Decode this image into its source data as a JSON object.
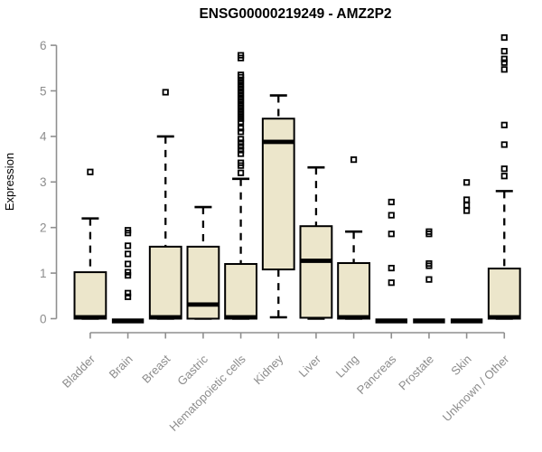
{
  "colors": {
    "background": "#ffffff",
    "box_fill": "#ece6cb",
    "box_border": "#000000",
    "median": "#000000",
    "whisker": "#000000",
    "outlier": "#000000",
    "axis": "#8f8f8f",
    "tick_label": "#8c8c8c",
    "title": "#000000"
  },
  "chart_data": {
    "type": "boxplot",
    "title": "ENSG00000219249 - AMZ2P2",
    "xlabel": "",
    "ylabel": "Expression",
    "ylim": [
      0,
      6.2
    ],
    "yticks": [
      0,
      1,
      2,
      3,
      4,
      5,
      6
    ],
    "grid": false,
    "legend": "none",
    "x_tick_rotation": 45,
    "outlier_marker": "open-square",
    "whisker_style": "dashed",
    "categories": [
      "Bladder",
      "Brain",
      "Breast",
      "Gastric",
      "Hematopoietic cells",
      "Kidney",
      "Liver",
      "Lung",
      "Pancreas",
      "Prostate",
      "Skin",
      "Unknown / Other"
    ],
    "boxes": [
      {
        "label": "Bladder",
        "whisker_low": 0,
        "q1": 0,
        "median": 0.03,
        "q3": 1.02,
        "whisker_high": 2.2,
        "outliers": [
          3.22
        ]
      },
      {
        "label": "Brain",
        "whisker_low": 0,
        "q1": 0,
        "median": 0,
        "q3": 0,
        "whisker_high": 0,
        "outliers": [
          0.48,
          0.56,
          0.95,
          1.02,
          1.2,
          1.42,
          1.6,
          1.88,
          1.94
        ]
      },
      {
        "label": "Breast",
        "whisker_low": 0,
        "q1": 0,
        "median": 0.03,
        "q3": 1.58,
        "whisker_high": 4.0,
        "outliers": [
          4.97
        ]
      },
      {
        "label": "Gastric",
        "whisker_low": 0,
        "q1": 0,
        "median": 0.31,
        "q3": 1.58,
        "whisker_high": 2.45,
        "outliers": []
      },
      {
        "label": "Hematopoietic cells",
        "whisker_low": 0,
        "q1": 0,
        "median": 0.03,
        "q3": 1.2,
        "whisker_high": 3.07,
        "outliers": [
          3.2,
          3.36,
          3.42,
          3.62,
          3.7,
          3.78,
          3.86,
          3.94,
          4.1,
          4.18,
          4.32,
          4.39,
          4.46,
          4.53,
          4.6,
          4.67,
          4.74,
          4.81,
          4.88,
          4.95,
          5.02,
          5.09,
          5.16,
          5.23,
          5.3,
          5.35,
          5.72,
          5.78
        ]
      },
      {
        "label": "Kidney",
        "whisker_low": 0.03,
        "q1": 1.08,
        "median": 3.88,
        "q3": 4.39,
        "whisker_high": 4.9,
        "outliers": []
      },
      {
        "label": "Liver",
        "whisker_low": 0,
        "q1": 0.02,
        "median": 1.27,
        "q3": 2.03,
        "whisker_high": 3.32,
        "outliers": []
      },
      {
        "label": "Lung",
        "whisker_low": 0,
        "q1": 0,
        "median": 0.03,
        "q3": 1.22,
        "whisker_high": 1.91,
        "outliers": [
          3.49
        ]
      },
      {
        "label": "Pancreas",
        "whisker_low": 0,
        "q1": 0,
        "median": 0,
        "q3": 0,
        "whisker_high": 0,
        "outliers": [
          0.79,
          1.11,
          1.86,
          2.27,
          2.56
        ]
      },
      {
        "label": "Prostate",
        "whisker_low": 0,
        "q1": 0,
        "median": 0,
        "q3": 0,
        "whisker_high": 0,
        "outliers": [
          0.86,
          1.16,
          1.21,
          1.86,
          1.91
        ]
      },
      {
        "label": "Skin",
        "whisker_low": 0,
        "q1": 0,
        "median": 0,
        "q3": 0,
        "whisker_high": 0,
        "outliers": [
          2.37,
          2.49,
          2.61,
          2.99
        ]
      },
      {
        "label": "Unknown / Other",
        "whisker_low": 0,
        "q1": 0,
        "median": 0.03,
        "q3": 1.1,
        "whisker_high": 2.8,
        "outliers": [
          3.13,
          3.29,
          3.82,
          4.25,
          5.47,
          5.62,
          5.7,
          5.87,
          6.17
        ]
      }
    ]
  }
}
